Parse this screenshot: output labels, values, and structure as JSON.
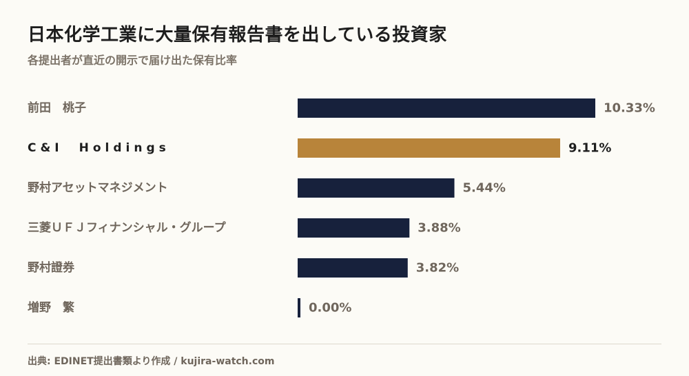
{
  "header": {
    "title": "日本化学工業に大量保有報告書を出している投資家",
    "subtitle": "各提出者が直近の開示で届け出た保有比率"
  },
  "footer": {
    "source": "出典: EDINET提出書類より作成 / kujira-watch.com"
  },
  "colors": {
    "bar_default": "#17213c",
    "bar_highlight": "#b8843a"
  },
  "chart_data": {
    "type": "bar",
    "orientation": "horizontal",
    "categories": [
      "前田　桃子",
      "C&I　Holdings",
      "野村アセットマネジメント",
      "三菱ＵＦＪフィナンシャル・グループ",
      "野村證券",
      "増野　繁"
    ],
    "values": [
      10.33,
      9.11,
      5.44,
      3.88,
      3.82,
      0.0
    ],
    "value_labels": [
      "10.33%",
      "9.11%",
      "5.44%",
      "3.88%",
      "3.82%",
      "0.00%"
    ],
    "highlight_index": 1,
    "xlim": [
      0,
      10.33
    ],
    "grid": false
  }
}
